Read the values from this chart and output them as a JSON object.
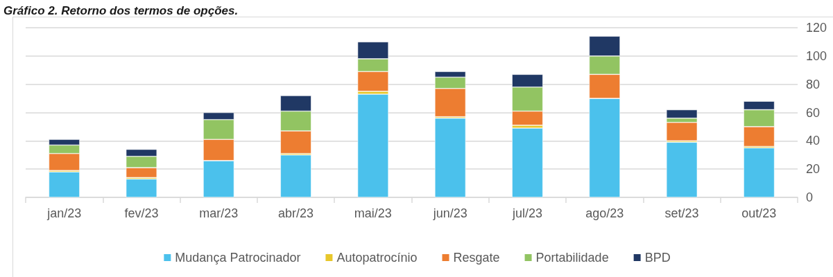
{
  "chart_data": {
    "type": "bar",
    "title": "Gráfico 2. Retorno dos termos de opções.",
    "categories": [
      "jan/23",
      "fev/23",
      "mar/23",
      "abr/23",
      "mai/23",
      "jun/23",
      "jul/23",
      "ago/23",
      "set/23",
      "out/23"
    ],
    "series": [
      {
        "name": "Mudança Patrocinador",
        "color": "#4bc1ec",
        "values": [
          18,
          13,
          26,
          30,
          73,
          56,
          49,
          70,
          39,
          35
        ]
      },
      {
        "name": "Autopatrocínio",
        "color": "#e8c72b",
        "values": [
          1,
          1,
          0,
          1,
          2,
          1,
          2,
          0,
          1,
          1
        ]
      },
      {
        "name": "Resgate",
        "color": "#ed7d31",
        "values": [
          12,
          7,
          15,
          16,
          14,
          20,
          10,
          17,
          13,
          14
        ]
      },
      {
        "name": "Portabilidade",
        "color": "#92c462",
        "values": [
          6,
          8,
          14,
          14,
          9,
          8,
          17,
          13,
          3,
          12
        ]
      },
      {
        "name": "BPD",
        "color": "#203864",
        "values": [
          4,
          5,
          5,
          11,
          12,
          4,
          9,
          14,
          6,
          6
        ]
      }
    ],
    "stacked": true,
    "ylim": [
      0,
      120
    ],
    "yticks": [
      0,
      20,
      40,
      60,
      80,
      100,
      120
    ],
    "grid": "y",
    "legend": "bottom"
  }
}
